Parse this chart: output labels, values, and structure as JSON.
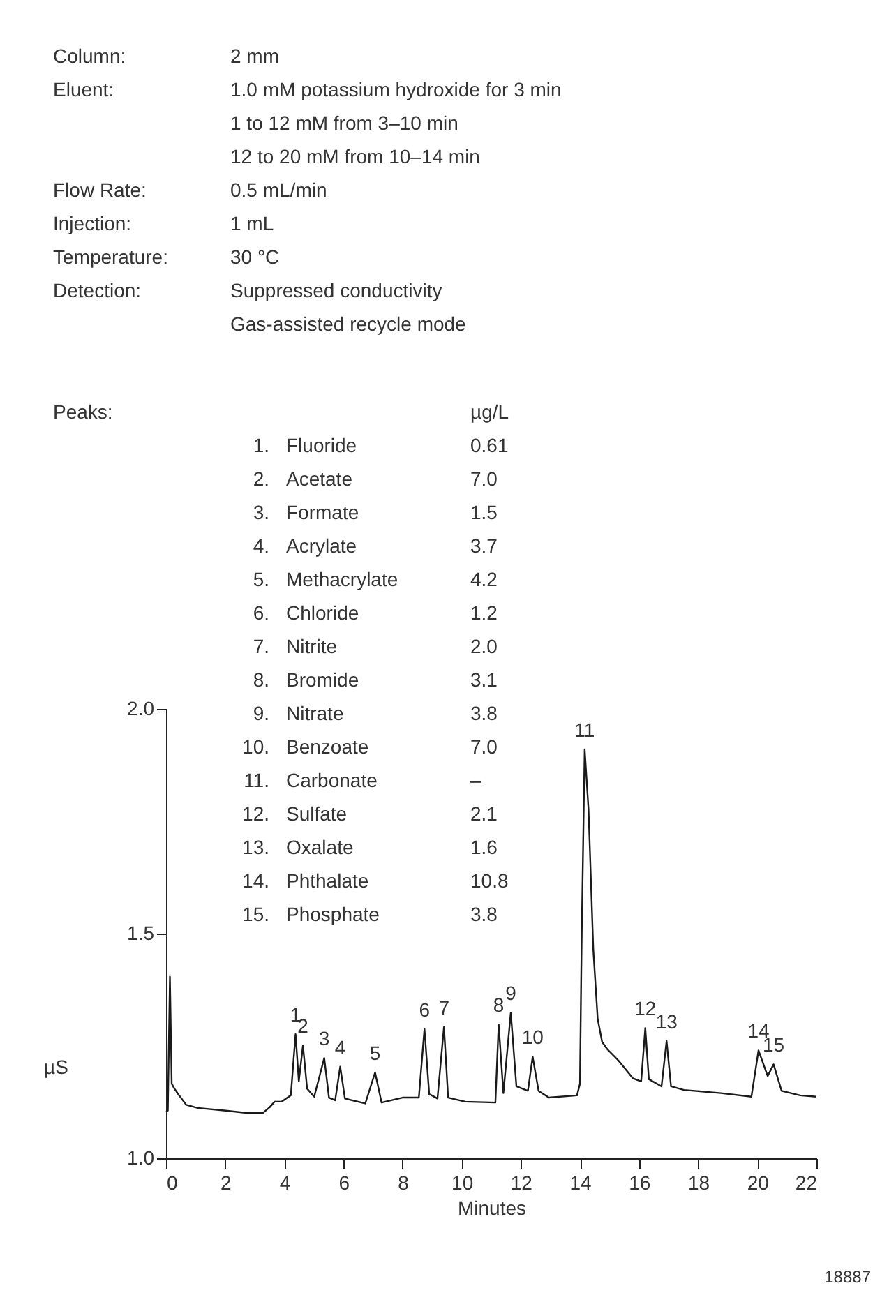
{
  "chart_data": {
    "type": "line",
    "xlabel": "Minutes",
    "ylabel": "µS",
    "xlim": [
      0,
      22
    ],
    "ylim": [
      1,
      2
    ],
    "xticks": [
      0,
      2,
      4,
      6,
      8,
      10,
      12,
      14,
      16,
      18,
      20,
      22
    ],
    "yticks": [
      {
        "value": 1,
        "label": "1.0"
      },
      {
        "value": 1.5,
        "label": "1.5"
      },
      {
        "value": 2,
        "label": "2.0"
      }
    ],
    "x": [
      0,
      0.06,
      0.13,
      0.19,
      0.28,
      0.44,
      0.68,
      1.07,
      2.02,
      2.72,
      3.28,
      3.51,
      3.67,
      3.91,
      4.22,
      4.38,
      4.49,
      4.63,
      4.77,
      5.01,
      5.35,
      5.51,
      5.72,
      5.89,
      6.05,
      6.74,
      7.07,
      7.29,
      8.0,
      8.55,
      8.74,
      8.9,
      9.18,
      9.4,
      9.54,
      10.12,
      11.14,
      11.25,
      11.41,
      11.66,
      11.85,
      12.24,
      12.4,
      12.6,
      12.95,
      13.9,
      14.0,
      14.06,
      14.16,
      14.29,
      14.45,
      14.6,
      14.75,
      14.92,
      15.31,
      15.79,
      16.07,
      16.21,
      16.33,
      16.76,
      16.93,
      17.08,
      17.52,
      18.77,
      19.8,
      20.04,
      20.35,
      20.55,
      20.82,
      21.45,
      22.0
    ],
    "series": [
      {
        "color": "#1a1a1a",
        "values": [
          1.104,
          1.106,
          1.404,
          1.166,
          1.155,
          1.14,
          1.119,
          1.112,
          1.106,
          1.101,
          1.101,
          1.114,
          1.126,
          1.126,
          1.14,
          1.276,
          1.171,
          1.251,
          1.155,
          1.137,
          1.223,
          1.135,
          1.129,
          1.204,
          1.133,
          1.122,
          1.191,
          1.124,
          1.135,
          1.135,
          1.288,
          1.143,
          1.133,
          1.292,
          1.135,
          1.126,
          1.124,
          1.298,
          1.145,
          1.324,
          1.16,
          1.15,
          1.226,
          1.15,
          1.135,
          1.14,
          1.166,
          1.5,
          1.91,
          1.776,
          1.466,
          1.31,
          1.259,
          1.243,
          1.217,
          1.178,
          1.171,
          1.29,
          1.176,
          1.16,
          1.261,
          1.16,
          1.152,
          1.145,
          1.137,
          1.24,
          1.183,
          1.209,
          1.15,
          1.14,
          1.137
        ]
      }
    ],
    "annotations": [
      "Column:\t2 mm",
      "Eluent:\t1.0 mM potassium hydroxide for 3 min",
      "\t1 to 12 mM from 3–10 min",
      "\t12 to 20 mM from 10–14 min",
      "Flow Rate:\t0.5 mL/min",
      "Injection:\t1 mL",
      "Temperature:\t30 °C",
      "Detection:\tSuppressed conductivity",
      "\tGas-assisted recycle mode",
      "Peaks:\t\t\tµg/L",
      "\t1.\tFluoride\t0.61",
      "\t2.\tAcetate\t7.0",
      "\t3.\tFormate\t1.5",
      "\t4.\tAcrylate\t3.7",
      "\t5.\tMethacrylate\t4.2",
      "\t6.\tChloride\t1.2",
      "\t7.\tNitrite\t2.0",
      "\t8.\tBromide\t3.1",
      "\t9.\tNitrate\t3.8",
      "\t10.\tBenzoate\t7.0",
      "\t11.\tCarbonate\t–",
      "\t12.\tSulfate\t2.1",
      "\t13.\tOxalate\t1.6",
      "\t14.\tPhthalate\t10.8",
      "\t15.\tPhosphate\t3.8",
      "18887",
      {
        "text": "1",
        "x": 4.38,
        "y": 1.276
      },
      {
        "text": "2",
        "x": 4.63,
        "y": 1.251
      },
      {
        "text": "3",
        "x": 5.35,
        "y": 1.223
      },
      {
        "text": "4",
        "x": 5.89,
        "y": 1.204
      },
      {
        "text": "5",
        "x": 7.07,
        "y": 1.191
      },
      {
        "text": "6",
        "x": 8.74,
        "y": 1.288
      },
      {
        "text": "7",
        "x": 9.4,
        "y": 1.292
      },
      {
        "text": "8",
        "x": 11.25,
        "y": 1.298
      },
      {
        "text": "9",
        "x": 11.66,
        "y": 1.324
      },
      {
        "text": "10",
        "x": 12.4,
        "y": 1.226
      },
      {
        "text": "11",
        "x": 14.16,
        "y": 1.91
      },
      {
        "text": "12",
        "x": 16.21,
        "y": 1.29
      },
      {
        "text": "13",
        "x": 16.93,
        "y": 1.261
      },
      {
        "text": "14",
        "x": 20.04,
        "y": 1.24
      },
      {
        "text": "15",
        "x": 20.55,
        "y": 1.209
      }
    ]
  }
}
